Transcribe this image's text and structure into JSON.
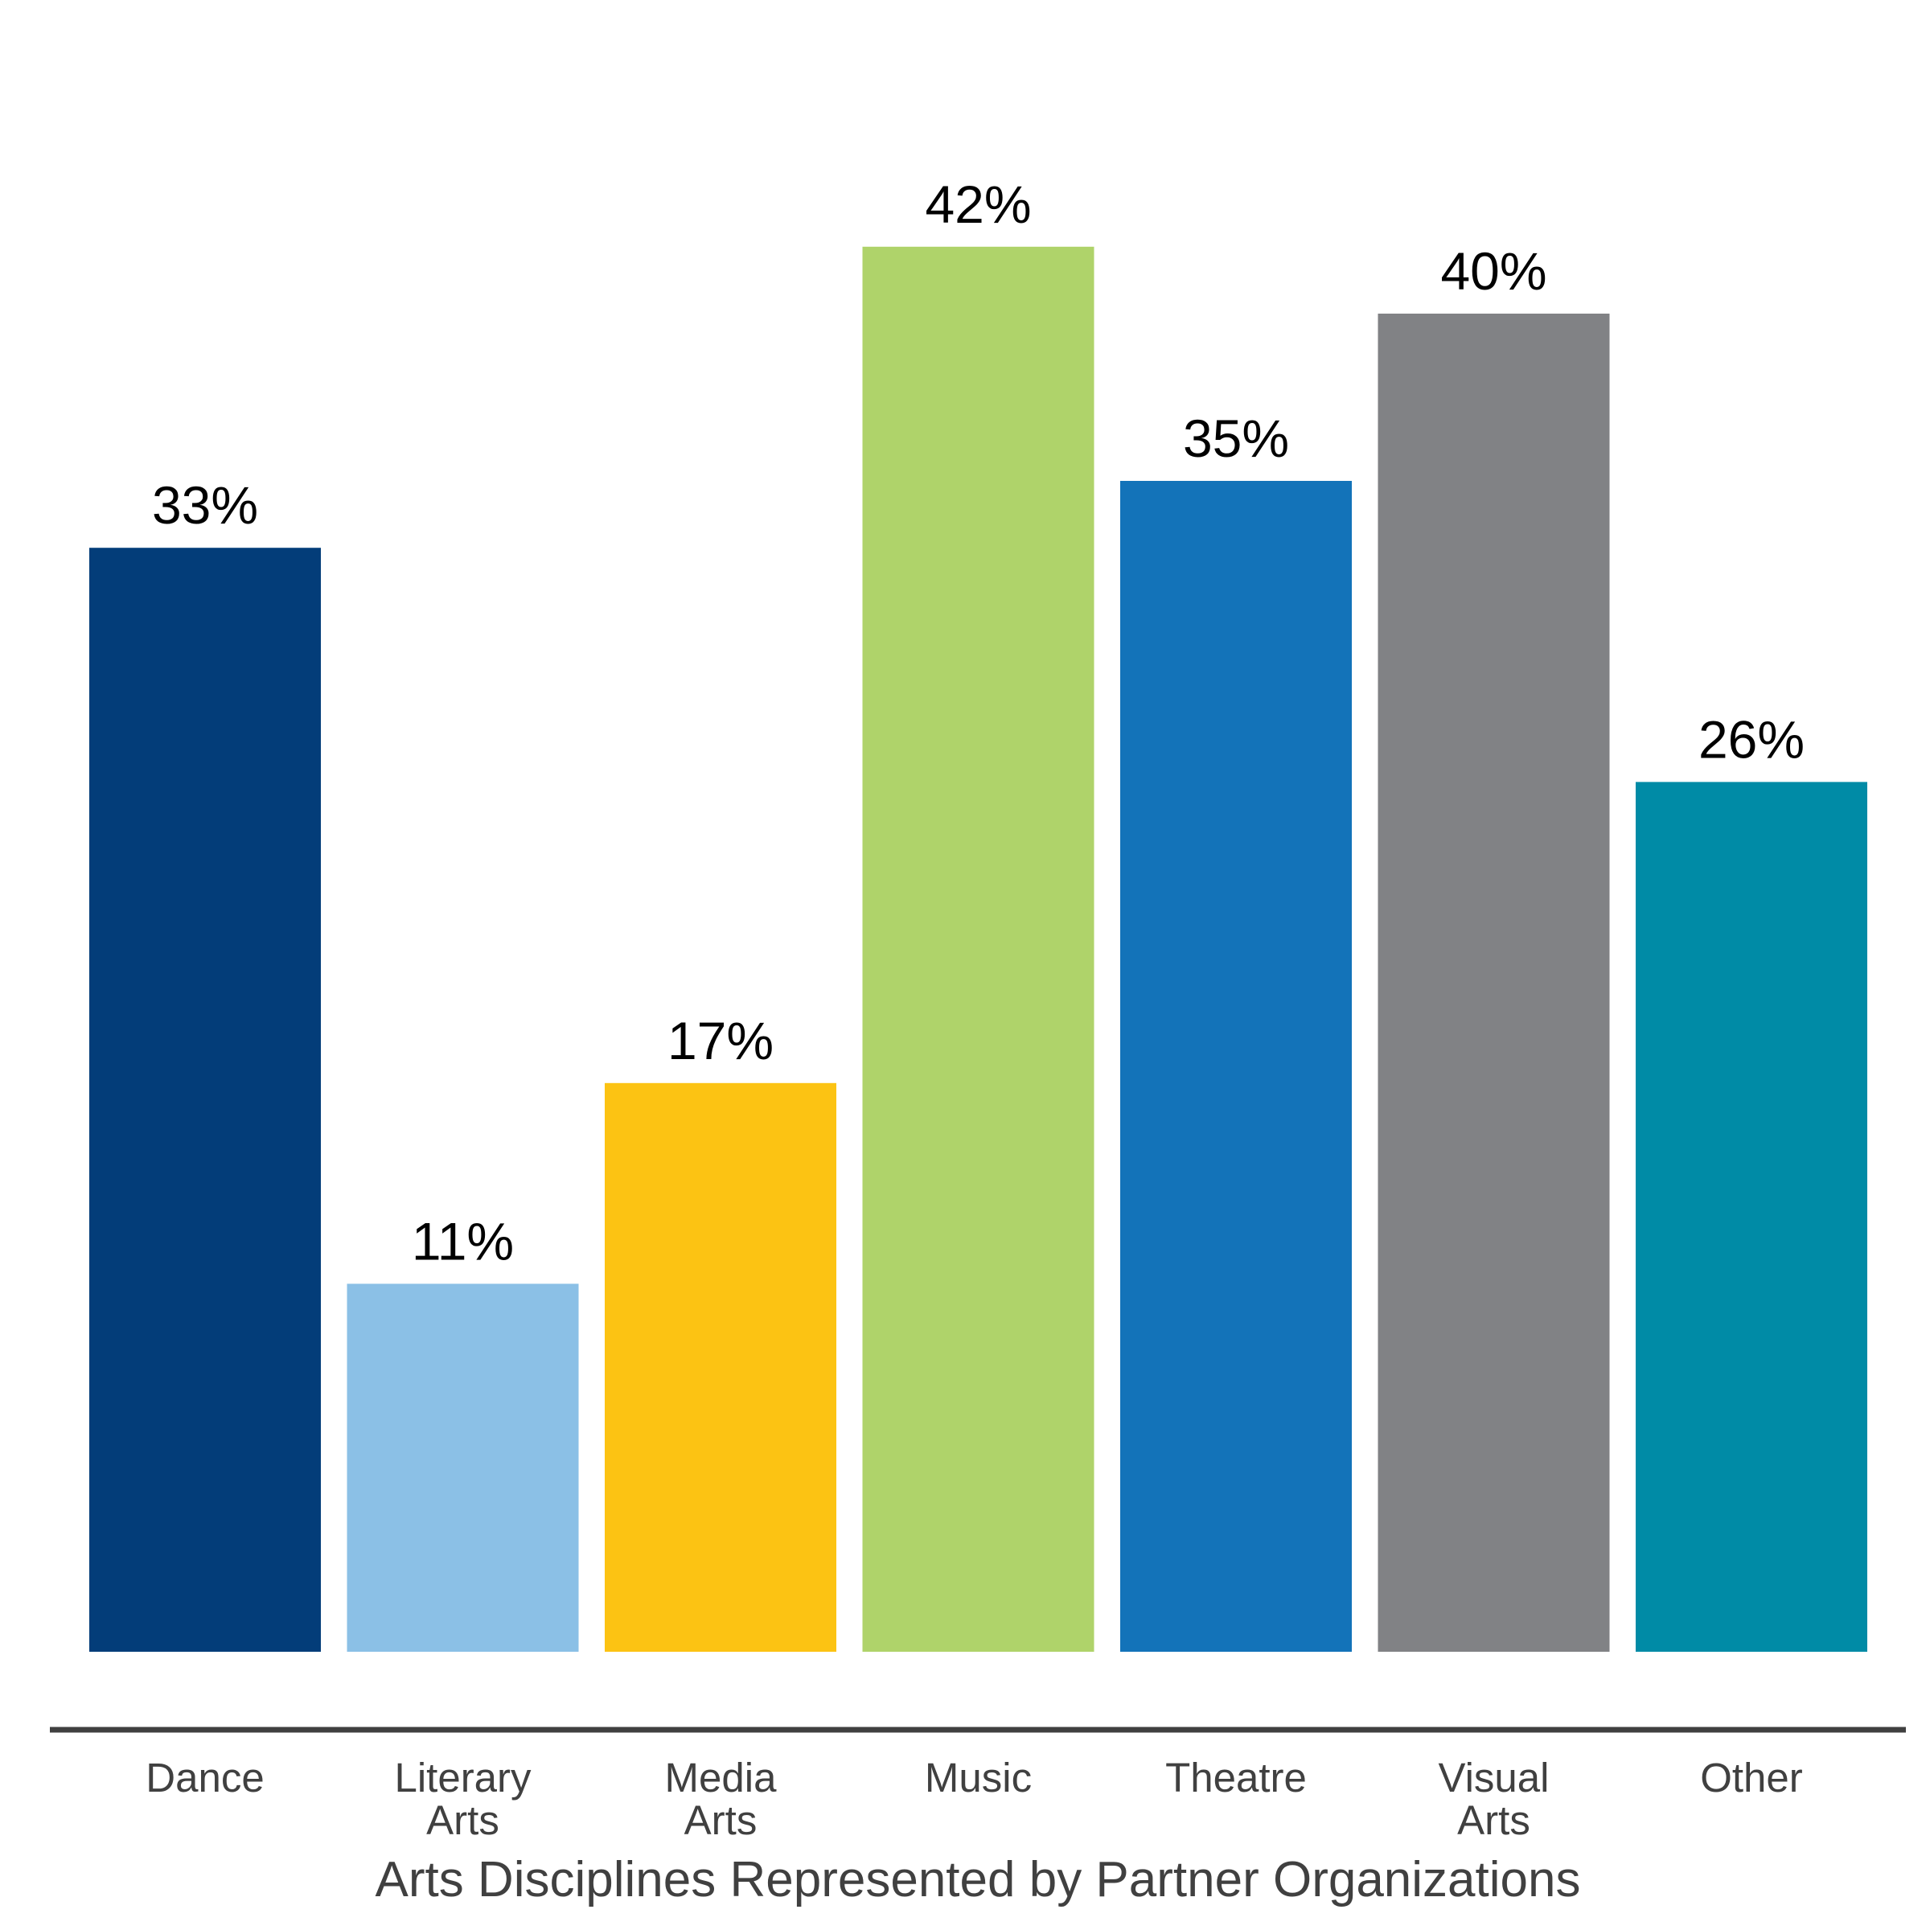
{
  "chart_data": {
    "type": "bar",
    "categories": [
      [
        "Dance"
      ],
      [
        "Literary",
        "Arts"
      ],
      [
        "Media",
        "Arts"
      ],
      [
        "Music"
      ],
      [
        "Theatre"
      ],
      [
        "Visual",
        "Arts"
      ],
      [
        "Other"
      ]
    ],
    "values": [
      33,
      11,
      17,
      42,
      35,
      40,
      26
    ],
    "data_labels": [
      "33%",
      "11%",
      "17%",
      "42%",
      "35%",
      "40%",
      "26%"
    ],
    "bar_colors": [
      "#033d79",
      "#8bc0e6",
      "#fcc313",
      "#afd36a",
      "#1373b9",
      "#818285",
      "#008ba6"
    ],
    "axis_color": "#404040",
    "xlabel": "Arts Disciplines Represented by Partner Organizations",
    "ylabel": "",
    "ylim": [
      0,
      50
    ],
    "grid": false,
    "legend": "none"
  }
}
